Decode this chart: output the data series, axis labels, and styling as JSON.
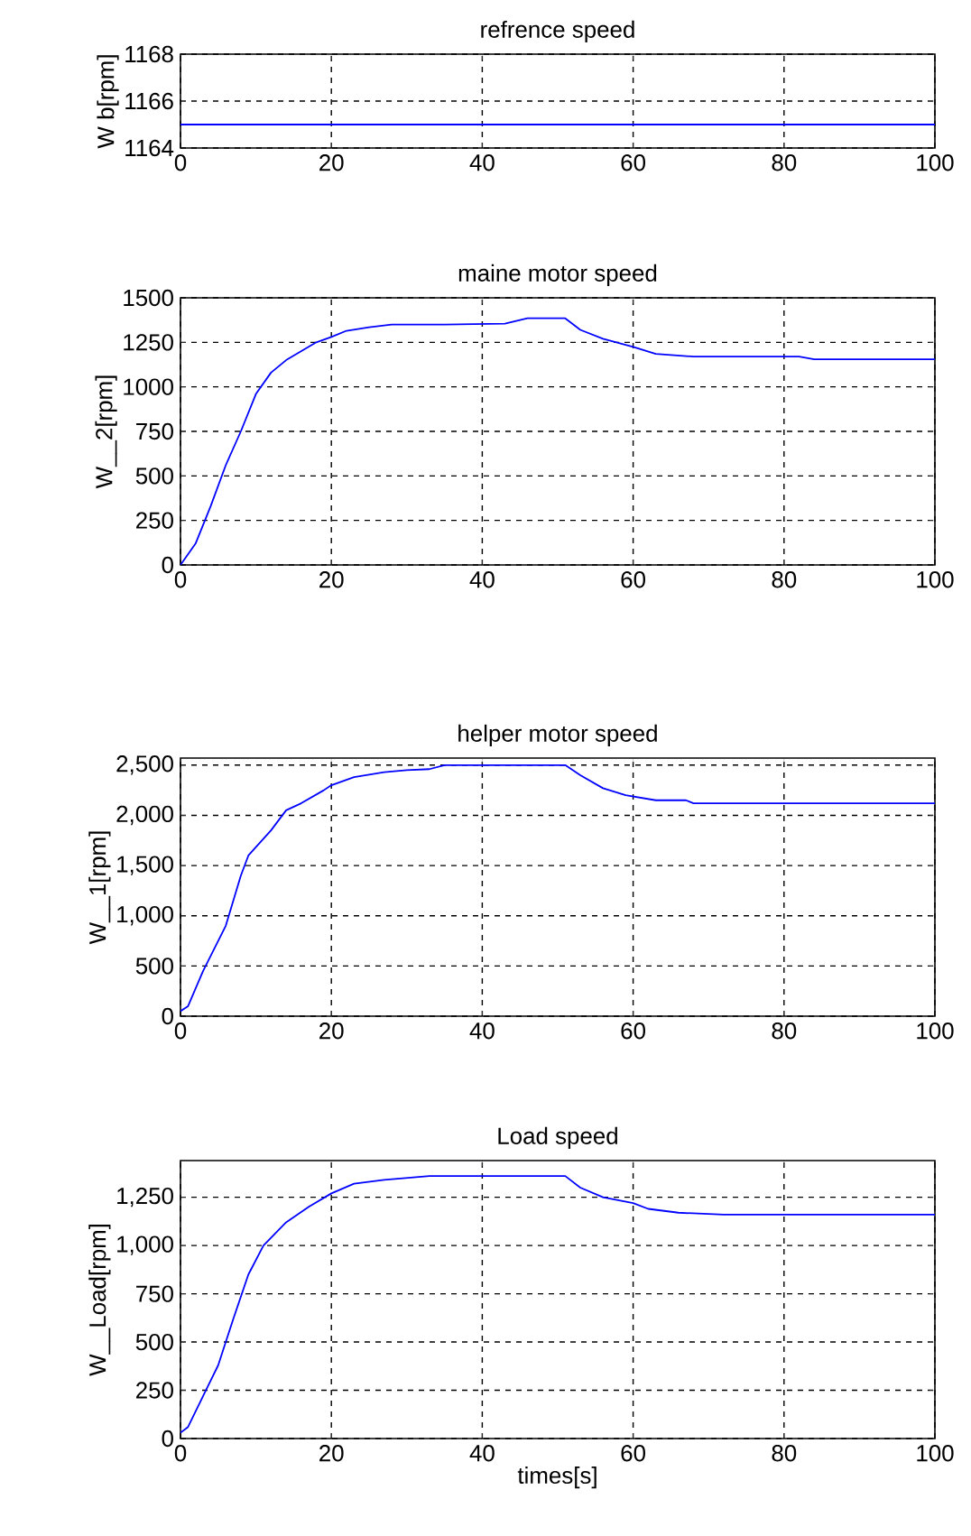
{
  "chart_data": [
    {
      "type": "line",
      "title": "refrence speed",
      "ylabel": "W b[rpm]",
      "x": [
        0,
        100
      ],
      "values": [
        1165,
        1165
      ],
      "color": "#0000ff",
      "xlim": [
        0,
        100
      ],
      "xticks": [
        0,
        20,
        40,
        60,
        80,
        100
      ],
      "ylim": [
        1164,
        1168
      ],
      "yticks": [
        1164,
        1166,
        1168
      ],
      "grid": true
    },
    {
      "type": "line",
      "title": "maine motor speed",
      "ylabel": "W__2[rpm]",
      "x": [
        0,
        2,
        4,
        6,
        8,
        10,
        12,
        14,
        16,
        18,
        20,
        22,
        25,
        28,
        35,
        43,
        46,
        51,
        53,
        56,
        60,
        63,
        68,
        82,
        84,
        100
      ],
      "values": [
        0,
        120,
        330,
        560,
        750,
        960,
        1080,
        1150,
        1200,
        1250,
        1280,
        1315,
        1335,
        1350,
        1350,
        1355,
        1385,
        1385,
        1320,
        1270,
        1225,
        1185,
        1170,
        1170,
        1155,
        1155
      ],
      "color": "#0000ff",
      "xlim": [
        0,
        100
      ],
      "xticks": [
        0,
        20,
        40,
        60,
        80,
        100
      ],
      "ylim": [
        0,
        1500
      ],
      "yticks": [
        0,
        250,
        500,
        750,
        1000,
        1250,
        1500
      ],
      "grid": true
    },
    {
      "type": "line",
      "title": "helper motor speed",
      "ylabel": "W__1[rpm]",
      "x": [
        0,
        1,
        3,
        6,
        8,
        9,
        12,
        14,
        16,
        19,
        20,
        23,
        27,
        30,
        33,
        35,
        51,
        53,
        56,
        59,
        63,
        67,
        68,
        100
      ],
      "values": [
        50,
        100,
        450,
        900,
        1400,
        1600,
        1850,
        2050,
        2120,
        2250,
        2300,
        2380,
        2430,
        2450,
        2460,
        2500,
        2500,
        2400,
        2270,
        2200,
        2150,
        2150,
        2120,
        2120
      ],
      "color": "#0000ff",
      "xlim": [
        0,
        100
      ],
      "xticks": [
        0,
        20,
        40,
        60,
        80,
        100
      ],
      "ylim": [
        0,
        2570
      ],
      "yticks": [
        0,
        {
          "value": 500,
          "label": "500"
        },
        {
          "value": 1000,
          "label": "1,000"
        },
        {
          "value": 1500,
          "label": "1,500"
        },
        {
          "value": 2000,
          "label": "2,000"
        },
        {
          "value": 2500,
          "label": "2,500"
        }
      ],
      "grid": true
    },
    {
      "type": "line",
      "title": "Load speed",
      "xlabel": "times[s]",
      "ylabel": "W__Load[rpm]",
      "x": [
        0,
        1,
        3,
        5,
        7,
        9,
        11,
        14,
        17,
        20,
        23,
        27,
        33,
        51,
        53,
        56,
        60,
        62,
        66,
        72,
        100
      ],
      "values": [
        30,
        60,
        220,
        380,
        620,
        850,
        1000,
        1120,
        1200,
        1270,
        1320,
        1340,
        1360,
        1360,
        1300,
        1250,
        1220,
        1190,
        1170,
        1160,
        1160
      ],
      "color": "#0000ff",
      "xlim": [
        0,
        100
      ],
      "xticks": [
        0,
        20,
        40,
        60,
        80,
        100
      ],
      "ylim": [
        0,
        1440
      ],
      "yticks": [
        0,
        250,
        500,
        750,
        {
          "value": 1000,
          "label": "1,000"
        },
        {
          "value": 1250,
          "label": "1,250"
        }
      ],
      "grid": true
    }
  ]
}
